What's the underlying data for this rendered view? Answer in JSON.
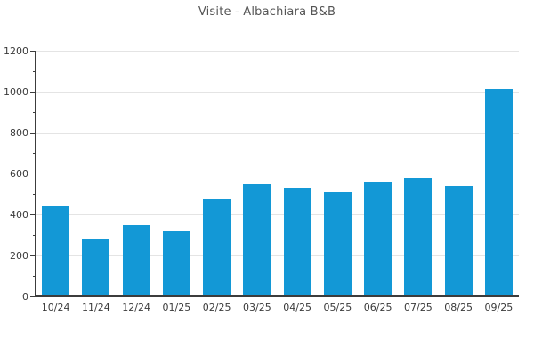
{
  "chart_data": {
    "type": "bar",
    "title": "Visite - Albachiara B&B",
    "categories": [
      "10/24",
      "11/24",
      "12/24",
      "01/25",
      "02/25",
      "03/25",
      "04/25",
      "05/25",
      "06/25",
      "07/25",
      "08/25",
      "09/25"
    ],
    "values": [
      440,
      280,
      350,
      320,
      475,
      550,
      530,
      510,
      555,
      580,
      540,
      1015
    ],
    "series": [
      {
        "name": "Visite",
        "values": [
          440,
          280,
          350,
          320,
          475,
          550,
          530,
          510,
          555,
          580,
          540,
          1015
        ]
      }
    ],
    "xlabel": "",
    "ylabel": "",
    "ylim": [
      0,
      1200
    ],
    "y_ticks": [
      0,
      200,
      400,
      600,
      800,
      1000,
      1200
    ],
    "y_tick_labels": [
      "0",
      "200",
      "400",
      "600",
      "800",
      "1000",
      "1200"
    ],
    "y_minor_tick_step": 100,
    "grid": "horizontal-major",
    "legend": "none",
    "colors": {
      "bar_fill": "#1398d6",
      "gridline": "#e4e4e4",
      "axis": "#3c3c3c",
      "tick_text": "#3a3a3a",
      "title_text": "#555555",
      "background": "#ffffff"
    }
  }
}
